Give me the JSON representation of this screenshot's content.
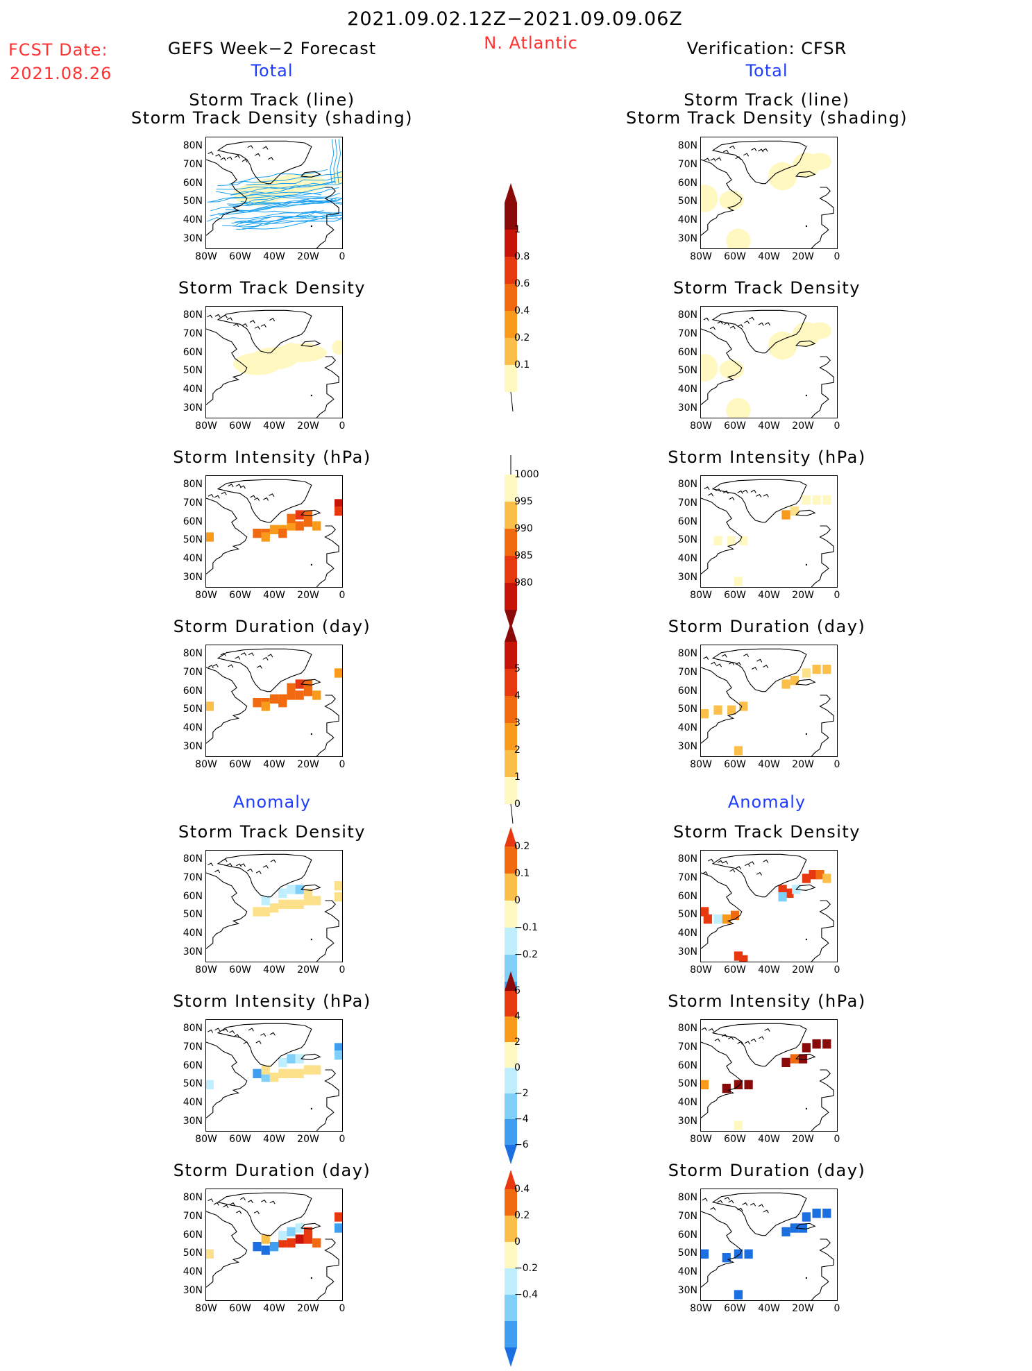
{
  "header": {
    "period": "2021.09.02.12Z−2021.09.09.06Z",
    "region": "N. Atlantic",
    "fcst_label": "FCST Date:",
    "fcst_date": "2021.08.26",
    "left_title": "GEFS Week−2 Forecast",
    "right_title": "Verification: CFSR",
    "total_label": "Total",
    "anomaly_label": "Anomaly"
  },
  "axes": {
    "y_ticks": [
      "80N",
      "70N",
      "60N",
      "50N",
      "40N",
      "30N"
    ],
    "x_ticks": [
      "80W",
      "60W",
      "40W",
      "20W",
      "0"
    ]
  },
  "panel_titles": {
    "track_line_1": "Storm Track (line)",
    "track_line_2": "Storm Track Density (shading)",
    "density": "Storm Track Density",
    "intensity": "Storm Intensity (hPa)",
    "duration": "Storm Duration (day)"
  },
  "colorbars": {
    "density": [
      "1",
      "0.8",
      "0.6",
      "0.4",
      "0.2",
      "0.1"
    ],
    "intensity": [
      "1000",
      "995",
      "990",
      "985",
      "980"
    ],
    "duration": [
      "5",
      "4",
      "3",
      "2",
      "1",
      "0"
    ],
    "density_anom": [
      "0.2",
      "0.1",
      "0",
      "−0.1",
      "−0.2"
    ],
    "intensity_anom": [
      "6",
      "4",
      "2",
      "0",
      "−2",
      "−4",
      "−6"
    ],
    "duration_anom": [
      "0.4",
      "0.2",
      "0",
      "−0.2",
      "−0.4"
    ]
  },
  "colors": {
    "title_red": "#ff3030",
    "title_blue": "#1e3cff",
    "track_line": "#1aa0f0",
    "warm_scale": [
      "#fff8c0",
      "#fde08a",
      "#fcc04a",
      "#f99a1a",
      "#f26a10",
      "#e83810",
      "#c81408",
      "#8a0a0a"
    ],
    "cool_scale": [
      "#bfeeff",
      "#7fcff8",
      "#3f9ef0",
      "#1c6fe0"
    ]
  },
  "chart_data": {
    "type": "heatmap",
    "title": "2021.09.02.12Z−2021.09.09.06Z N. Atlantic",
    "xlim": [
      -80,
      0
    ],
    "ylim": [
      25,
      85
    ],
    "panels": [
      {
        "name": "GEFS Week-2 Forecast Total: Storm Track (line) / Storm Track Density (shading)",
        "column": "forecast"
      },
      {
        "name": "Verification CFSR Total: Storm Track (line) / Storm Track Density (shading)",
        "column": "verification"
      },
      {
        "name": "GEFS Week-2 Forecast Total: Storm Track Density",
        "column": "forecast"
      },
      {
        "name": "Verification CFSR Total: Storm Track Density",
        "column": "verification"
      },
      {
        "name": "GEFS Week-2 Forecast Total: Storm Intensity (hPa)",
        "column": "forecast"
      },
      {
        "name": "Verification CFSR Total: Storm Intensity (hPa)",
        "column": "verification"
      },
      {
        "name": "GEFS Week-2 Forecast Total: Storm Duration (day)",
        "column": "forecast"
      },
      {
        "name": "Verification CFSR Total: Storm Duration (day)",
        "column": "verification"
      },
      {
        "name": "GEFS Week-2 Forecast Anomaly: Storm Track Density",
        "column": "forecast"
      },
      {
        "name": "Verification CFSR Anomaly: Storm Track Density",
        "column": "verification"
      },
      {
        "name": "GEFS Week-2 Forecast Anomaly: Storm Intensity (hPa)",
        "column": "forecast"
      },
      {
        "name": "Verification CFSR Anomaly: Storm Intensity (hPa)",
        "column": "verification"
      },
      {
        "name": "GEFS Week-2 Forecast Anomaly: Storm Duration (day)",
        "column": "forecast"
      },
      {
        "name": "Verification CFSR Anomaly: Storm Duration (day)",
        "column": "verification"
      }
    ]
  }
}
